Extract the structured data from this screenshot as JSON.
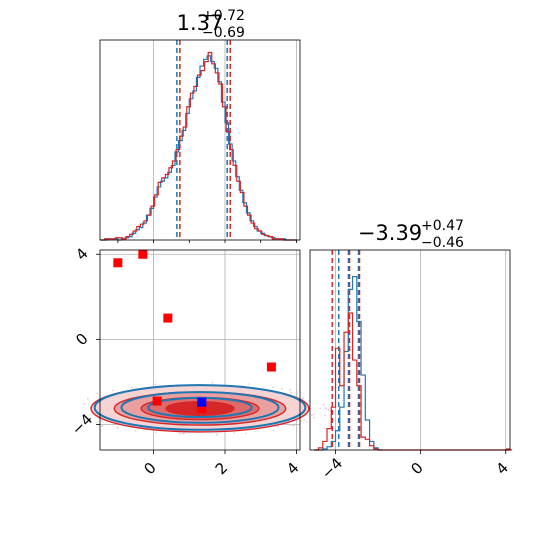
{
  "colors": {
    "red": "#d62728",
    "blue": "#1f77b4",
    "marker_blue": "#0000ff",
    "marker_red": "#ff0000"
  },
  "chart_data": {
    "type": "corner",
    "grid": true,
    "panels": {
      "x_hist": {
        "type": "histogram",
        "title": {
          "value": "1.37",
          "upper": "+0.72",
          "lower": "−0.69"
        },
        "xlim": [
          -1.5,
          4.1
        ],
        "xticks": [
          -2,
          0,
          2,
          4
        ],
        "bins": [
          -1.5,
          4.0,
          0.1
        ],
        "series": [
          {
            "color": "blue",
            "quantiles": [
              0.68,
              1.37,
              2.09
            ],
            "counts": [
              0,
              0,
              1,
              1,
              1,
              0,
              1,
              2,
              3,
              6,
              9,
              11,
              15,
              22,
              28,
              38,
              47,
              52,
              55,
              60,
              66,
              78,
              88,
              97,
              112,
              125,
              132,
              144,
              154,
              160,
              163,
              158,
              152,
              140,
              122,
              104,
              85,
              70,
              56,
              44,
              33,
              24,
              17,
              12,
              8,
              6,
              4,
              3,
              2,
              1,
              1,
              1,
              0,
              0,
              0
            ]
          },
          {
            "color": "red",
            "quantiles": [
              0.68,
              1.37,
              2.09
            ],
            "counts": [
              0,
              1,
              1,
              1,
              2,
              2,
              1,
              3,
              5,
              8,
              12,
              14,
              17,
              22,
              30,
              40,
              51,
              55,
              58,
              64,
              70,
              80,
              92,
              100,
              118,
              130,
              136,
              146,
              150,
              158,
              166,
              156,
              148,
              138,
              118,
              96,
              80,
              66,
              52,
              42,
              30,
              22,
              15,
              10,
              8,
              5,
              4,
              3,
              1,
              1,
              1,
              0,
              0,
              0,
              0
            ]
          }
        ]
      },
      "y_hist": {
        "type": "histogram",
        "title": {
          "value": "−3.39",
          "upper": "+0.47",
          "lower": "−0.46"
        },
        "xlim": [
          -5.2,
          4.2
        ],
        "xticks": [
          -4,
          0,
          4
        ],
        "series": [
          {
            "color": "blue",
            "quantiles": [
              -3.85,
              -3.39,
              -2.92
            ],
            "counts": [
              [
                -5.0,
                0
              ],
              [
                -4.8,
                0
              ],
              [
                -4.6,
                1
              ],
              [
                -4.4,
                3
              ],
              [
                -4.2,
                8
              ],
              [
                -4.0,
                18
              ],
              [
                -3.8,
                40
              ],
              [
                -3.6,
                92
              ],
              [
                -3.4,
                150
              ],
              [
                -3.2,
                162
              ],
              [
                -3.0,
                120
              ],
              [
                -2.8,
                70
              ],
              [
                -2.6,
                28
              ],
              [
                -2.4,
                8
              ],
              [
                -2.2,
                2
              ],
              [
                -2.0,
                0
              ]
            ]
          },
          {
            "color": "red",
            "quantiles": [
              -4.2,
              -3.39,
              -2.92
            ],
            "counts": [
              [
                -5.0,
                0
              ],
              [
                -4.8,
                2
              ],
              [
                -4.6,
                8
              ],
              [
                -4.4,
                20
              ],
              [
                -4.2,
                40
              ],
              [
                -4.0,
                95
              ],
              [
                -3.8,
                60
              ],
              [
                -3.6,
                110
              ],
              [
                -3.4,
                128
              ],
              [
                -3.2,
                84
              ],
              [
                -3.0,
                60
              ],
              [
                -2.8,
                12
              ],
              [
                -2.6,
                10
              ],
              [
                -2.4,
                4
              ],
              [
                -2.2,
                1
              ],
              [
                -2.0,
                0
              ],
              [
                3.9,
                0
              ],
              [
                4.0,
                1
              ],
              [
                4.1,
                0
              ]
            ]
          }
        ]
      },
      "joint": {
        "type": "contour",
        "xlim": [
          -1.5,
          4.1
        ],
        "ylim": [
          -5.2,
          4.2
        ],
        "xticks": [
          -2,
          0,
          2,
          4
        ],
        "yticks": [
          -4,
          0,
          4
        ],
        "contours": [
          {
            "color": "red",
            "center": [
              1.3,
              -3.25
            ],
            "radii": [
              [
                3.05,
                1.1
              ],
              [
                2.4,
                0.78
              ],
              [
                1.65,
                0.52
              ],
              [
                0.95,
                0.32
              ]
            ]
          },
          {
            "color": "blue",
            "center": [
              1.3,
              -3.2
            ],
            "radii": [
              [
                2.95,
                1.05
              ],
              [
                2.2,
                0.72
              ],
              [
                1.45,
                0.45
              ]
            ]
          }
        ],
        "markers": [
          {
            "color": "marker_red",
            "x": -1.0,
            "y": 3.6
          },
          {
            "color": "marker_red",
            "x": -0.3,
            "y": 4.0
          },
          {
            "color": "marker_red",
            "x": 0.4,
            "y": 1.0
          },
          {
            "color": "marker_red",
            "x": 3.3,
            "y": -1.3
          },
          {
            "color": "marker_red",
            "x": 0.1,
            "y": -2.9
          },
          {
            "color": "marker_red",
            "x": 1.35,
            "y": -3.25
          },
          {
            "color": "marker_blue",
            "x": 1.35,
            "y": -2.95
          }
        ]
      }
    }
  }
}
